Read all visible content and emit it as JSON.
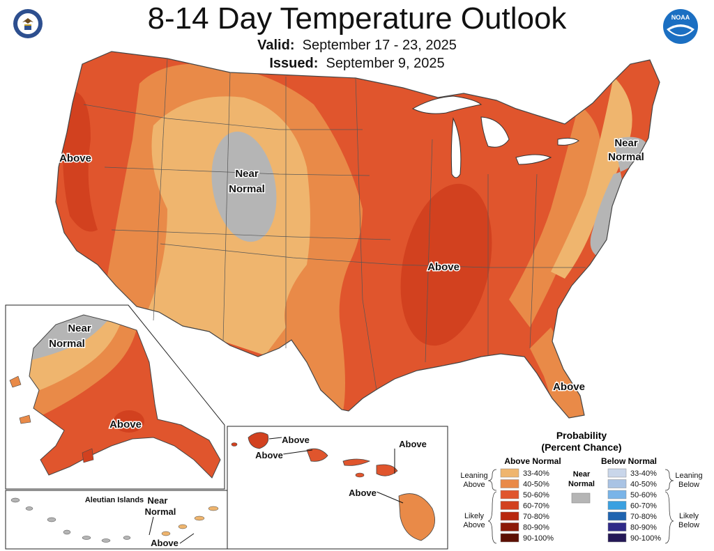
{
  "header": {
    "title": "8-14 Day Temperature Outlook",
    "valid_label": "Valid:",
    "valid_value": "September 17 - 23, 2025",
    "issued_label": "Issued:",
    "issued_value": "September 9, 2025"
  },
  "logos": {
    "left": "doc-seal-icon",
    "right": "noaa-logo-icon",
    "noaa_text": "NOAA"
  },
  "map_labels": {
    "west_coast": "Above",
    "rockies_1": "Near",
    "rockies_2": "Normal",
    "mid_south": "Above",
    "northeast_1": "Near",
    "northeast_2": "Normal",
    "florida": "Above",
    "alaska_north_1": "Near",
    "alaska_north_2": "Normal",
    "alaska_south": "Above",
    "aleutian_title": "Aleutian Islands",
    "aleutian_1": "Near",
    "aleutian_2": "Normal",
    "aleutian_3": "Above",
    "hawaii_1": "Above",
    "hawaii_2": "Above",
    "hawaii_3": "Above",
    "hawaii_4": "Above"
  },
  "colors": {
    "a33": "#efb56e",
    "a40": "#e98a48",
    "a50": "#e0552d",
    "a60": "#d2411f",
    "a70": "#b8280e",
    "a80": "#8c1a08",
    "a90": "#5c0f03",
    "near": "#b5b5b5",
    "b33": "#c9d6ea",
    "b40": "#a9c3e4",
    "b50": "#79b4e8",
    "b60": "#3aa0e0",
    "b70": "#1f64b0",
    "b80": "#2f2a88",
    "b90": "#241856"
  },
  "legend": {
    "title_1": "Probability",
    "title_2": "(Percent Chance)",
    "above_header": "Above Normal",
    "below_header": "Below Normal",
    "near_1": "Near",
    "near_2": "Normal",
    "leaning_above_1": "Leaning",
    "leaning_above_2": "Above",
    "likely_above_1": "Likely",
    "likely_above_2": "Above",
    "leaning_below_1": "Leaning",
    "leaning_below_2": "Below",
    "likely_below_1": "Likely",
    "likely_below_2": "Below",
    "above": [
      {
        "label": "33-40%",
        "color": "#efb56e"
      },
      {
        "label": "40-50%",
        "color": "#e98a48"
      },
      {
        "label": "50-60%",
        "color": "#e0552d"
      },
      {
        "label": "60-70%",
        "color": "#d2411f"
      },
      {
        "label": "70-80%",
        "color": "#b8280e"
      },
      {
        "label": "80-90%",
        "color": "#8c1a08"
      },
      {
        "label": "90-100%",
        "color": "#5c0f03"
      }
    ],
    "below": [
      {
        "label": "33-40%",
        "color": "#c9d6ea"
      },
      {
        "label": "40-50%",
        "color": "#a9c3e4"
      },
      {
        "label": "50-60%",
        "color": "#79b4e8"
      },
      {
        "label": "60-70%",
        "color": "#3aa0e0"
      },
      {
        "label": "70-80%",
        "color": "#1f64b0"
      },
      {
        "label": "80-90%",
        "color": "#2f2a88"
      },
      {
        "label": "90-100%",
        "color": "#241856"
      }
    ]
  }
}
